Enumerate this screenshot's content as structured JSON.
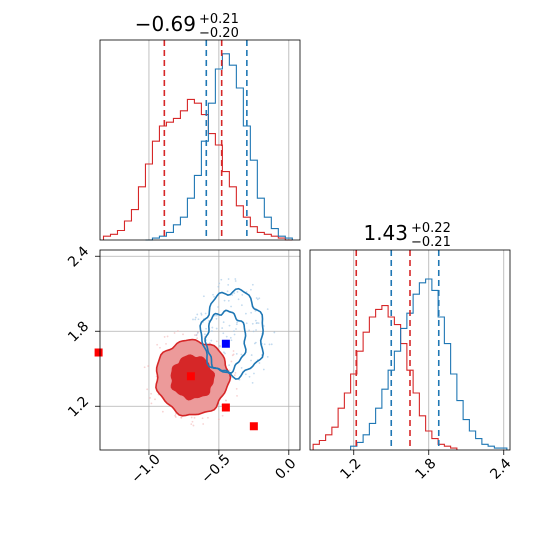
{
  "colors": {
    "red": "#d62728",
    "blue": "#1f77b4",
    "red_light": "#ec9a9a",
    "grid": "#b0b0b0",
    "marker_red": "#ff0000",
    "marker_blue": "#0000ff"
  },
  "chart_data": [
    {
      "panel": "top-left",
      "type": "histogram",
      "title": {
        "main": "−0.69",
        "sup": "+0.21",
        "sub": "−0.20"
      },
      "xlim": [
        -1.35,
        0.08
      ],
      "series": [
        {
          "color": "red",
          "x": [
            -1.3,
            -1.25,
            -1.2,
            -1.15,
            -1.1,
            -1.05,
            -1.0,
            -0.95,
            -0.9,
            -0.85,
            -0.8,
            -0.75,
            -0.7,
            -0.65,
            -0.6,
            -0.55,
            -0.5,
            -0.45,
            -0.4,
            -0.35,
            -0.3,
            -0.25,
            -0.2,
            -0.15,
            -0.1,
            -0.05,
            0.0
          ],
          "counts": [
            0.02,
            0.03,
            0.05,
            0.1,
            0.16,
            0.28,
            0.4,
            0.52,
            0.6,
            0.62,
            0.64,
            0.68,
            0.74,
            0.72,
            0.66,
            0.56,
            0.5,
            0.36,
            0.28,
            0.18,
            0.12,
            0.07,
            0.04,
            0.03,
            0.02,
            0.01,
            0.0
          ]
        },
        {
          "color": "blue",
          "x": [
            -1.0,
            -0.95,
            -0.9,
            -0.85,
            -0.8,
            -0.75,
            -0.7,
            -0.65,
            -0.6,
            -0.55,
            -0.5,
            -0.45,
            -0.4,
            -0.35,
            -0.3,
            -0.25,
            -0.2,
            -0.15,
            -0.1,
            -0.05,
            0.0
          ],
          "counts": [
            0.0,
            0.01,
            0.02,
            0.04,
            0.08,
            0.12,
            0.22,
            0.34,
            0.52,
            0.72,
            0.9,
            0.98,
            0.92,
            0.8,
            0.6,
            0.42,
            0.22,
            0.12,
            0.06,
            0.02,
            0.01
          ]
        }
      ],
      "vlines": [
        {
          "color": "red",
          "x": -0.89
        },
        {
          "color": "red",
          "x": -0.48
        },
        {
          "color": "blue",
          "x": -0.59
        },
        {
          "color": "blue",
          "x": -0.3
        }
      ]
    },
    {
      "panel": "bottom-left",
      "type": "contour",
      "xlim": [
        -1.35,
        0.08
      ],
      "ylim": [
        0.85,
        2.45
      ],
      "xticks": [
        -1.0,
        -0.5,
        0.0
      ],
      "xtick_labels": [
        "−1.0",
        "−0.5",
        "0.0"
      ],
      "yticks": [
        1.2,
        1.8,
        2.4
      ],
      "ytick_labels": [
        "1.2",
        "1.8",
        "2.4"
      ],
      "red_filled_contours": [
        {
          "level": "outer",
          "cx": -0.69,
          "cy": 1.43,
          "rx": 0.26,
          "ry": 0.3
        },
        {
          "level": "inner",
          "cx": -0.69,
          "cy": 1.43,
          "rx": 0.15,
          "ry": 0.17
        }
      ],
      "blue_contours": [
        {
          "level": "outer",
          "cx": -0.4,
          "cy": 1.78,
          "rx": 0.22,
          "ry": 0.34
        },
        {
          "level": "inner",
          "cx": -0.45,
          "cy": 1.72,
          "rx": 0.14,
          "ry": 0.24
        }
      ],
      "markers": [
        {
          "color": "marker_red",
          "x": -1.36,
          "y": 1.63
        },
        {
          "color": "marker_red",
          "x": -0.7,
          "y": 1.44
        },
        {
          "color": "marker_red",
          "x": -0.45,
          "y": 1.19
        },
        {
          "color": "marker_red",
          "x": -0.25,
          "y": 1.04
        },
        {
          "color": "marker_blue",
          "x": -0.45,
          "y": 1.7
        }
      ]
    },
    {
      "panel": "bottom-right",
      "type": "histogram",
      "title": {
        "main": "1.43",
        "sup": "+0.22",
        "sub": "−0.21"
      },
      "xlim": [
        0.85,
        2.45
      ],
      "xticks": [
        1.2,
        1.8,
        2.4
      ],
      "xtick_labels": [
        "1.2",
        "1.8",
        "2.4"
      ],
      "series": [
        {
          "color": "red",
          "x": [
            0.9,
            0.95,
            1.0,
            1.05,
            1.1,
            1.15,
            1.2,
            1.25,
            1.3,
            1.35,
            1.4,
            1.45,
            1.5,
            1.55,
            1.6,
            1.65,
            1.7,
            1.75,
            1.8,
            1.85,
            1.9,
            1.95,
            2.0
          ],
          "counts": [
            0.03,
            0.05,
            0.08,
            0.12,
            0.22,
            0.3,
            0.4,
            0.52,
            0.62,
            0.7,
            0.74,
            0.76,
            0.7,
            0.66,
            0.56,
            0.42,
            0.3,
            0.18,
            0.1,
            0.06,
            0.03,
            0.02,
            0.01
          ]
        },
        {
          "color": "blue",
          "x": [
            1.2,
            1.25,
            1.3,
            1.35,
            1.4,
            1.45,
            1.5,
            1.55,
            1.6,
            1.65,
            1.7,
            1.75,
            1.8,
            1.85,
            1.9,
            1.95,
            2.0,
            2.05,
            2.1,
            2.15,
            2.2,
            2.25,
            2.3,
            2.35,
            2.4
          ],
          "counts": [
            0.02,
            0.04,
            0.08,
            0.14,
            0.22,
            0.32,
            0.42,
            0.52,
            0.64,
            0.72,
            0.82,
            0.88,
            0.9,
            0.84,
            0.7,
            0.56,
            0.4,
            0.26,
            0.16,
            0.1,
            0.06,
            0.03,
            0.02,
            0.01,
            0.01
          ]
        }
      ],
      "vlines": [
        {
          "color": "red",
          "x": 1.22
        },
        {
          "color": "red",
          "x": 1.65
        },
        {
          "color": "blue",
          "x": 1.5
        },
        {
          "color": "blue",
          "x": 1.88
        }
      ]
    }
  ]
}
